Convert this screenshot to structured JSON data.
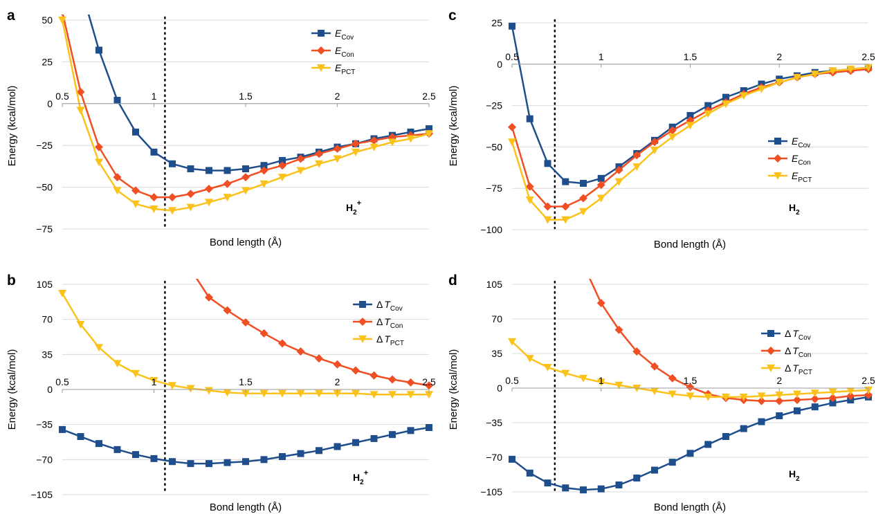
{
  "molecules": {
    "h2_plus": "H2+",
    "h2": "H2"
  },
  "chart_data": [
    {
      "panel": "a",
      "type": "line",
      "molecule": "H2+",
      "xlabel": "Bond length (Å)",
      "ylabel": "Energy (kcal/mol)",
      "xlim": [
        0.5,
        2.5
      ],
      "ylim": [
        -75,
        50
      ],
      "xticks": [
        "0.5",
        "1",
        "1.5",
        "2",
        "2.5"
      ],
      "yticks": [
        "50",
        "25",
        "0",
        "−25",
        "−50",
        "−75"
      ],
      "grid": true,
      "legend_position": "top-right",
      "equilibrium_line_x": 1.06,
      "series": [
        {
          "name": "E_Cov",
          "symbol": "E",
          "subscript": "Cov",
          "color": "#1f4e8c",
          "marker": "square",
          "x": [
            0.6,
            0.7,
            0.8,
            0.9,
            1.0,
            1.1,
            1.2,
            1.3,
            1.4,
            1.5,
            1.6,
            1.7,
            1.8,
            1.9,
            2.0,
            2.1,
            2.2,
            2.3,
            2.4,
            2.5
          ],
          "y": [
            70,
            32,
            2,
            -17,
            -29,
            -36,
            -39,
            -40,
            -40,
            -39,
            -37,
            -34,
            -32,
            -29,
            -26,
            -24,
            -21,
            -19,
            -17,
            -15
          ]
        },
        {
          "name": "E_Con",
          "symbol": "E",
          "subscript": "Con",
          "color": "#f04e23",
          "marker": "diamond",
          "x": [
            0.5,
            0.6,
            0.7,
            0.8,
            0.9,
            1.0,
            1.1,
            1.2,
            1.3,
            1.4,
            1.5,
            1.6,
            1.7,
            1.8,
            1.9,
            2.0,
            2.1,
            2.2,
            2.3,
            2.4,
            2.5
          ],
          "y": [
            55,
            7,
            -26,
            -44,
            -52,
            -56,
            -56,
            -54,
            -51,
            -48,
            -44,
            -40,
            -37,
            -33,
            -30,
            -27,
            -24,
            -22,
            -20,
            -19,
            -18
          ]
        },
        {
          "name": "E_PCT",
          "symbol": "E",
          "subscript": "PCT",
          "color": "#fbc21b",
          "marker": "triangle-down",
          "x": [
            0.5,
            0.6,
            0.7,
            0.8,
            0.9,
            1.0,
            1.1,
            1.2,
            1.3,
            1.4,
            1.5,
            1.6,
            1.7,
            1.8,
            1.9,
            2.0,
            2.1,
            2.2,
            2.3,
            2.4,
            2.5
          ],
          "y": [
            50,
            -4,
            -35,
            -52,
            -60,
            -63,
            -64,
            -62,
            -59,
            -56,
            -52,
            -48,
            -44,
            -40,
            -36,
            -33,
            -29,
            -26,
            -23,
            -21,
            -18
          ]
        }
      ]
    },
    {
      "panel": "b",
      "type": "line",
      "molecule": "H2+",
      "xlabel": "Bond length (Å)",
      "ylabel": "Energy (kcal/mol)",
      "xlim": [
        0.5,
        2.5
      ],
      "ylim": [
        -105,
        105
      ],
      "xticks": [
        "0.5",
        "1",
        "1.5",
        "2",
        "2.5"
      ],
      "yticks": [
        "105",
        "70",
        "35",
        "0",
        "−35",
        "−70",
        "−105"
      ],
      "grid": true,
      "legend_position": "top-right",
      "equilibrium_line_x": 1.06,
      "series": [
        {
          "name": "ΔT_Cov",
          "symbol": "ΔT",
          "subscript": "Cov",
          "color": "#1f4e8c",
          "marker": "square",
          "x": [
            0.5,
            0.6,
            0.7,
            0.8,
            0.9,
            1.0,
            1.1,
            1.2,
            1.3,
            1.4,
            1.5,
            1.6,
            1.7,
            1.8,
            1.9,
            2.0,
            2.1,
            2.2,
            2.3,
            2.4,
            2.5
          ],
          "y": [
            -40,
            -47,
            -54,
            -60,
            -65,
            -69,
            -72,
            -74,
            -74,
            -73,
            -72,
            -70,
            -67,
            -64,
            -61,
            -57,
            -53,
            -49,
            -45,
            -41,
            -38
          ]
        },
        {
          "name": "ΔT_Con",
          "symbol": "ΔT",
          "subscript": "Con",
          "color": "#f04e23",
          "marker": "diamond",
          "x": [
            1.2,
            1.3,
            1.4,
            1.5,
            1.6,
            1.7,
            1.8,
            1.9,
            2.0,
            2.1,
            2.2,
            2.3,
            2.4,
            2.5
          ],
          "y": [
            120,
            92,
            79,
            67,
            56,
            46,
            38,
            31,
            25,
            19,
            14,
            10,
            7,
            4
          ]
        },
        {
          "name": "ΔT_PCT",
          "symbol": "ΔT",
          "subscript": "PCT",
          "color": "#fbc21b",
          "marker": "triangle-down",
          "x": [
            0.5,
            0.6,
            0.7,
            0.8,
            0.9,
            1.0,
            1.1,
            1.2,
            1.3,
            1.4,
            1.5,
            1.6,
            1.7,
            1.8,
            1.9,
            2.0,
            2.1,
            2.2,
            2.3,
            2.4,
            2.5
          ],
          "y": [
            96,
            65,
            42,
            26,
            16,
            9,
            4,
            1,
            -1,
            -3,
            -4,
            -4,
            -4,
            -4,
            -4,
            -4,
            -4,
            -5,
            -5,
            -5,
            -5
          ]
        }
      ]
    },
    {
      "panel": "c",
      "type": "line",
      "molecule": "H2",
      "xlabel": "Bond length (Å)",
      "ylabel": "Energy (kcal/mol)",
      "xlim": [
        0.5,
        2.5
      ],
      "ylim": [
        -100,
        25
      ],
      "xticks": [
        "0.5",
        "1",
        "1.5",
        "2",
        "2.5"
      ],
      "yticks": [
        "25",
        "0",
        "−25",
        "−50",
        "−75",
        "−100"
      ],
      "grid": true,
      "legend_position": "center-right",
      "equilibrium_line_x": 0.74,
      "series": [
        {
          "name": "E_Cov",
          "symbol": "E",
          "subscript": "Cov",
          "color": "#1f4e8c",
          "marker": "square",
          "x": [
            0.5,
            0.6,
            0.7,
            0.8,
            0.9,
            1.0,
            1.1,
            1.2,
            1.3,
            1.4,
            1.5,
            1.6,
            1.7,
            1.8,
            1.9,
            2.0,
            2.1,
            2.2,
            2.3,
            2.4,
            2.5
          ],
          "y": [
            23,
            -33,
            -60,
            -71,
            -72,
            -69,
            -62,
            -54,
            -46,
            -38,
            -31,
            -25,
            -20,
            -16,
            -12,
            -9,
            -7,
            -5,
            -4,
            -3,
            -2
          ]
        },
        {
          "name": "E_Con",
          "symbol": "E",
          "subscript": "Con",
          "color": "#f04e23",
          "marker": "diamond",
          "x": [
            0.5,
            0.6,
            0.7,
            0.8,
            0.9,
            1.0,
            1.1,
            1.2,
            1.3,
            1.4,
            1.5,
            1.6,
            1.7,
            1.8,
            1.9,
            2.0,
            2.1,
            2.2,
            2.3,
            2.4,
            2.5
          ],
          "y": [
            -38,
            -74,
            -86,
            -86,
            -81,
            -73,
            -64,
            -55,
            -47,
            -40,
            -34,
            -28,
            -23,
            -18,
            -14,
            -11,
            -8,
            -6,
            -5,
            -4,
            -3
          ]
        },
        {
          "name": "E_PCT",
          "symbol": "E",
          "subscript": "PCT",
          "color": "#fbc21b",
          "marker": "triangle-down",
          "x": [
            0.5,
            0.6,
            0.7,
            0.8,
            0.9,
            1.0,
            1.1,
            1.2,
            1.3,
            1.4,
            1.5,
            1.6,
            1.7,
            1.8,
            1.9,
            2.0,
            2.1,
            2.2,
            2.3,
            2.4,
            2.5
          ],
          "y": [
            -47,
            -82,
            -94,
            -94,
            -89,
            -81,
            -71,
            -62,
            -52,
            -44,
            -37,
            -30,
            -24,
            -19,
            -15,
            -11,
            -8,
            -6,
            -4,
            -3,
            -2
          ]
        }
      ]
    },
    {
      "panel": "d",
      "type": "line",
      "molecule": "H2",
      "xlabel": "Bond length (Å)",
      "ylabel": "Energy (kcal/mol)",
      "xlim": [
        0.5,
        2.5
      ],
      "ylim": [
        -105,
        105
      ],
      "xticks": [
        "0.5",
        "1",
        "1.5",
        "2",
        "2.5"
      ],
      "yticks": [
        "105",
        "70",
        "35",
        "0",
        "−35",
        "−70",
        "−105"
      ],
      "grid": true,
      "legend_position": "center-right",
      "equilibrium_line_x": 0.74,
      "series": [
        {
          "name": "ΔT_Cov",
          "symbol": "ΔT",
          "subscript": "Cov",
          "color": "#1f4e8c",
          "marker": "square",
          "x": [
            0.5,
            0.6,
            0.7,
            0.8,
            0.9,
            1.0,
            1.1,
            1.2,
            1.3,
            1.4,
            1.5,
            1.6,
            1.7,
            1.8,
            1.9,
            2.0,
            2.1,
            2.2,
            2.3,
            2.4,
            2.5
          ],
          "y": [
            -72,
            -86,
            -96,
            -101,
            -103,
            -102,
            -98,
            -91,
            -83,
            -75,
            -66,
            -57,
            -49,
            -41,
            -34,
            -28,
            -23,
            -19,
            -15,
            -12,
            -9
          ]
        },
        {
          "name": "ΔT_Con",
          "symbol": "ΔT",
          "subscript": "Con",
          "color": "#f04e23",
          "marker": "diamond",
          "x": [
            0.9,
            1.0,
            1.1,
            1.2,
            1.3,
            1.4,
            1.5,
            1.6,
            1.7,
            1.8,
            1.9,
            2.0,
            2.1,
            2.2,
            2.3,
            2.4,
            2.5
          ],
          "y": [
            125,
            86,
            59,
            37,
            22,
            10,
            1,
            -6,
            -10,
            -12,
            -13,
            -13,
            -12,
            -11,
            -10,
            -8,
            -7
          ]
        },
        {
          "name": "ΔT_PCT",
          "symbol": "ΔT",
          "subscript": "PCT",
          "color": "#fbc21b",
          "marker": "triangle-down",
          "x": [
            0.5,
            0.6,
            0.7,
            0.8,
            0.9,
            1.0,
            1.1,
            1.2,
            1.3,
            1.4,
            1.5,
            1.6,
            1.7,
            1.8,
            1.9,
            2.0,
            2.1,
            2.2,
            2.3,
            2.4,
            2.5
          ],
          "y": [
            47,
            30,
            21,
            15,
            10,
            6,
            3,
            0,
            -3,
            -6,
            -8,
            -9,
            -9,
            -9,
            -8,
            -7,
            -6,
            -5,
            -4,
            -3,
            -2
          ]
        }
      ]
    }
  ]
}
